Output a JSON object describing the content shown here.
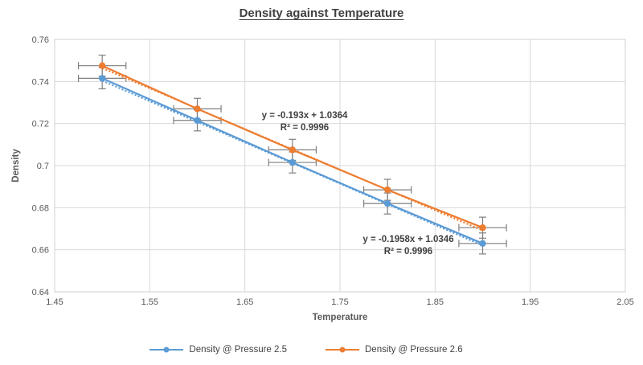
{
  "title": "Density against Temperature",
  "axes": {
    "x_label": "Temperature",
    "y_label": "Density"
  },
  "chart_data": {
    "type": "line",
    "x": [
      1.5,
      1.6,
      1.7,
      1.8,
      1.9
    ],
    "series": [
      {
        "name": "Density @ Pressure 2.5",
        "color": "#5B9BD5",
        "values": [
          0.7415,
          0.7215,
          0.7015,
          0.682,
          0.663
        ],
        "trendline": {
          "equation": "y = -0.1958x + 1.0346",
          "r2": "R² = 0.9996",
          "slope": -0.1958,
          "intercept": 1.0346
        }
      },
      {
        "name": "Density @ Pressure 2.6",
        "color": "#ED7D31",
        "values": [
          0.7475,
          0.727,
          0.7075,
          0.6885,
          0.6705
        ],
        "trendline": {
          "equation": "y = -0.193x + 1.0364",
          "r2": "R² = 0.9996",
          "slope": -0.193,
          "intercept": 1.0364
        }
      }
    ],
    "error_bars": {
      "x_plus_minus": 0.025,
      "y_plus_minus": 0.005
    },
    "xlim": [
      1.45,
      2.05
    ],
    "ylim": [
      0.64,
      0.76
    ],
    "x_ticks": [
      "1.45",
      "1.55",
      "1.65",
      "1.75",
      "1.85",
      "1.95",
      "2.05"
    ],
    "y_ticks": [
      "0.64",
      "0.66",
      "0.68",
      "0.7",
      "0.72",
      "0.74",
      "0.76"
    ],
    "grid": true,
    "legend_position": "bottom"
  },
  "colors": {
    "grid": "#D9D9D9",
    "plot_border": "#D0D0D0",
    "error_bar": "#7F7F7F",
    "tick_label": "#595959",
    "title_text": "#404040",
    "annotation_text": "#404040",
    "legend_text": "#404040"
  }
}
